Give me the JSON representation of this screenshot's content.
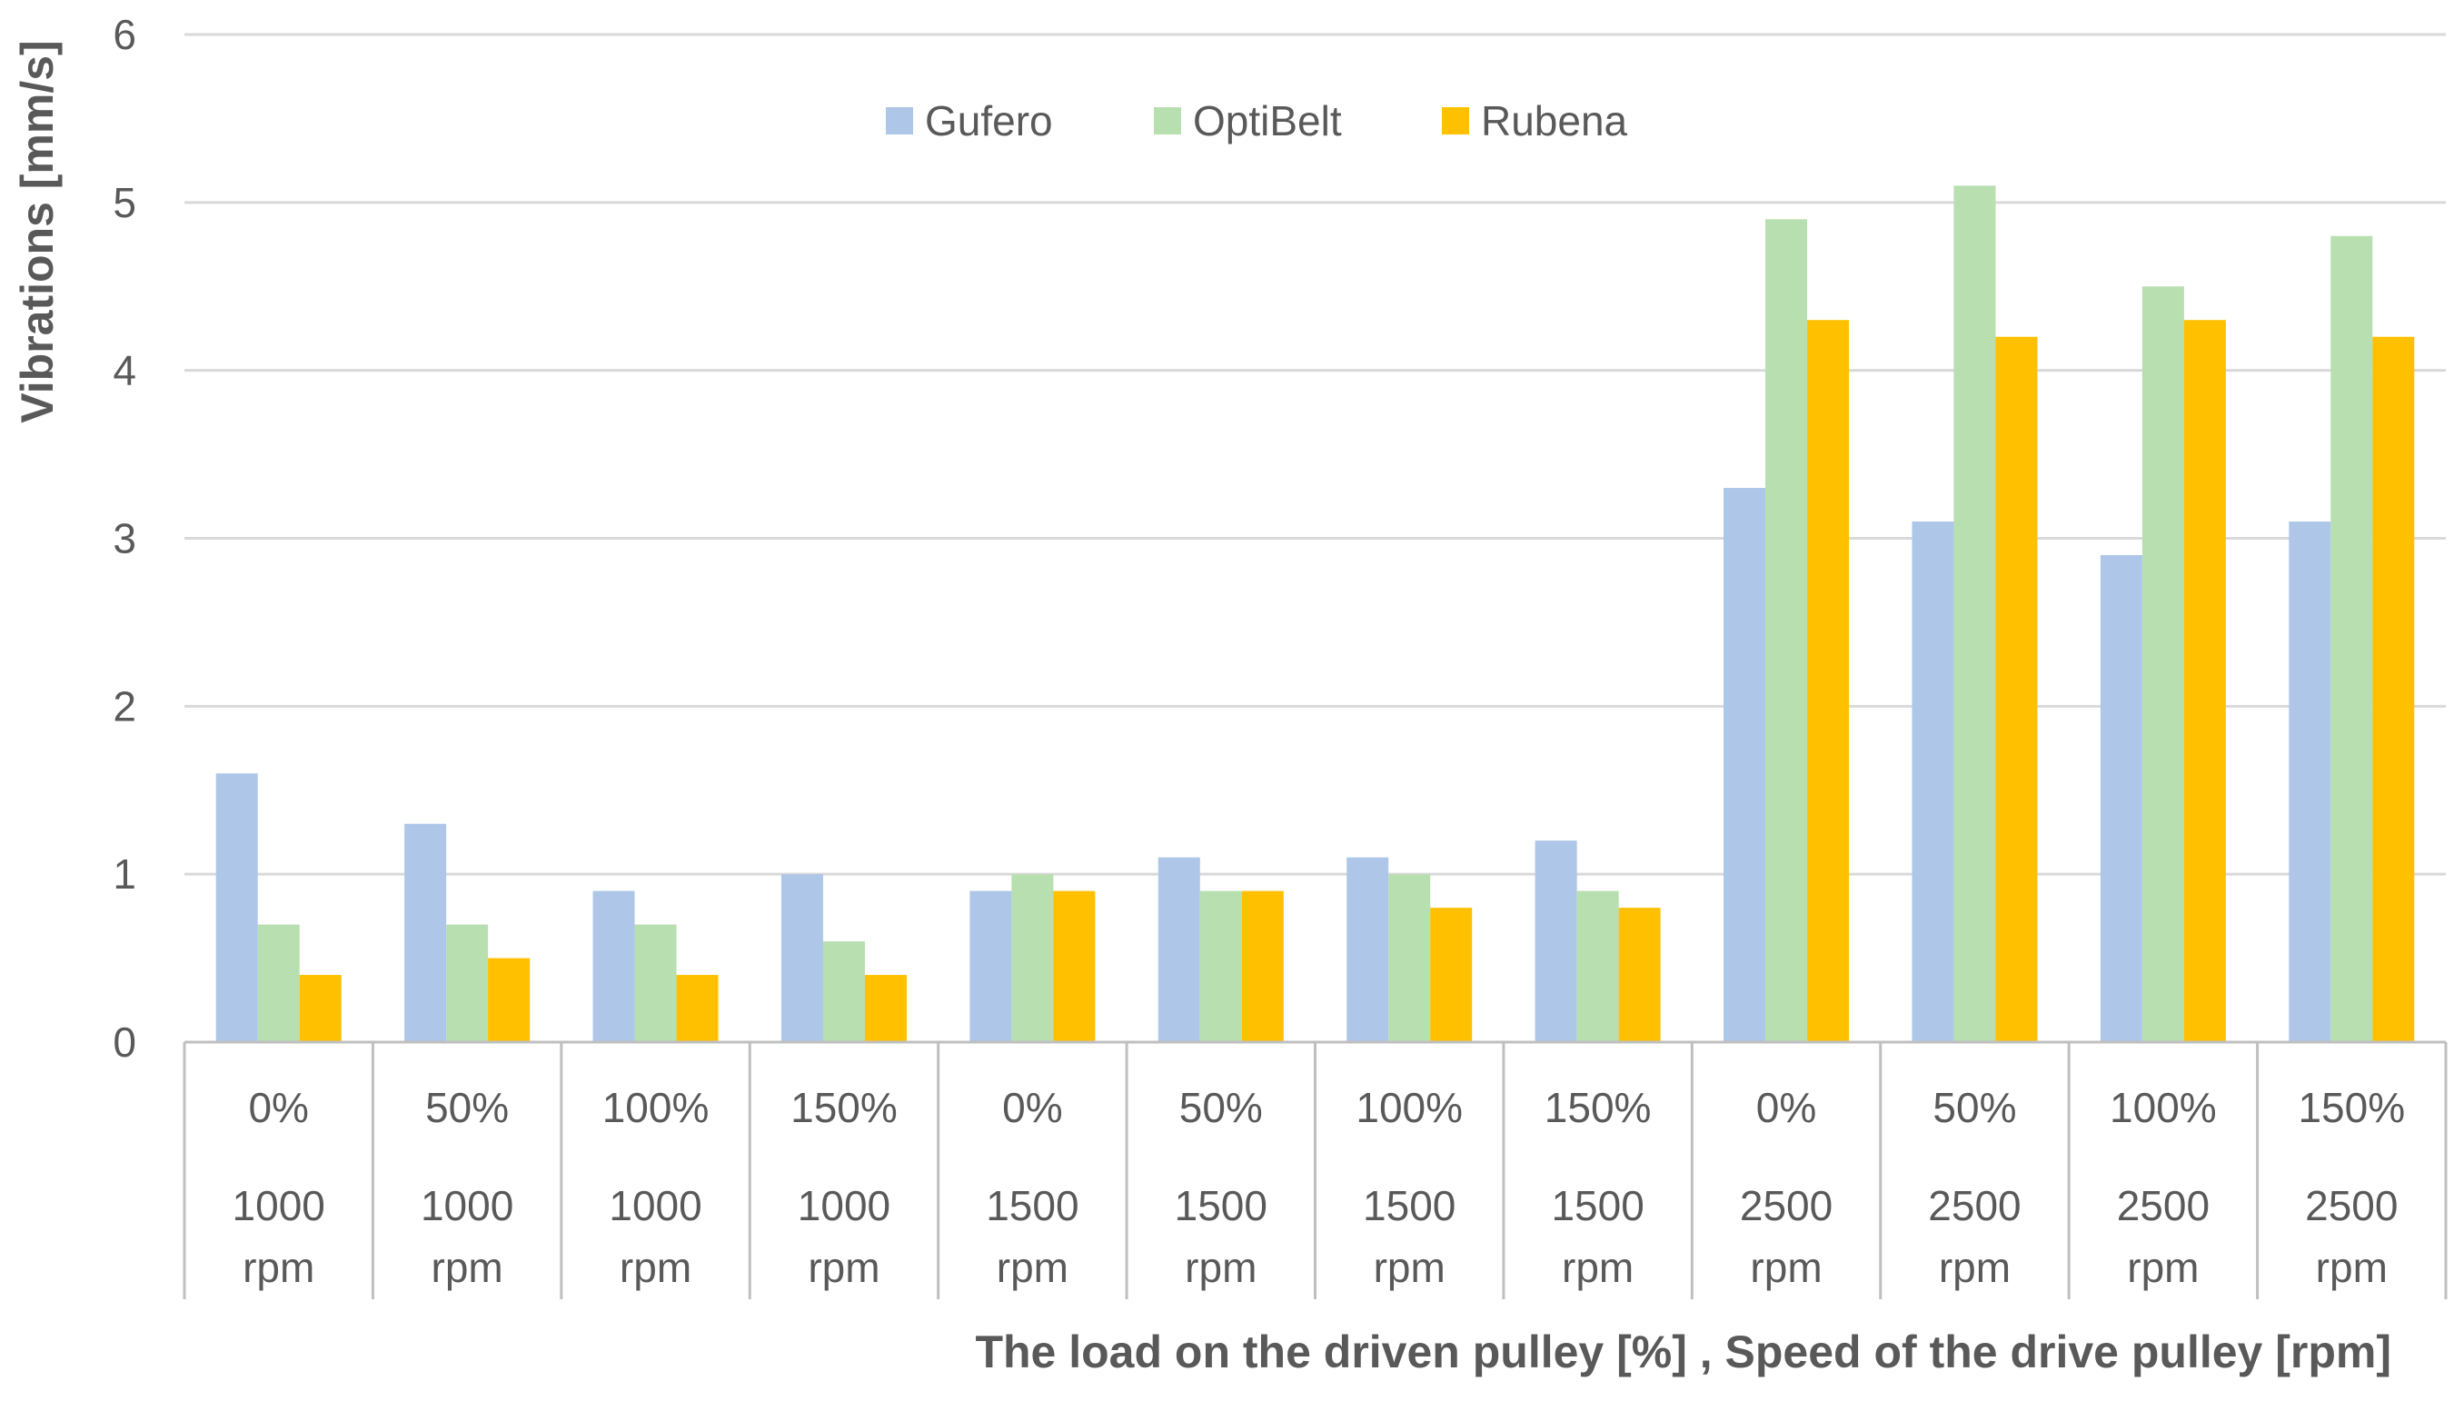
{
  "chart_data": {
    "type": "bar",
    "title": "",
    "xlabel": "The load on the driven pulley [%] , Speed of the drive pulley [rpm]",
    "ylabel": "Vibrations [mm/s]",
    "ylim": [
      0,
      6
    ],
    "yticks": [
      0,
      1,
      2,
      3,
      4,
      5,
      6
    ],
    "grid": true,
    "legend_position": "top-center",
    "categories": [
      {
        "load": "0%",
        "speed": "1000",
        "unit": "rpm"
      },
      {
        "load": "50%",
        "speed": "1000",
        "unit": "rpm"
      },
      {
        "load": "100%",
        "speed": "1000",
        "unit": "rpm"
      },
      {
        "load": "150%",
        "speed": "1000",
        "unit": "rpm"
      },
      {
        "load": "0%",
        "speed": "1500",
        "unit": "rpm"
      },
      {
        "load": "50%",
        "speed": "1500",
        "unit": "rpm"
      },
      {
        "load": "100%",
        "speed": "1500",
        "unit": "rpm"
      },
      {
        "load": "150%",
        "speed": "1500",
        "unit": "rpm"
      },
      {
        "load": "0%",
        "speed": "2500",
        "unit": "rpm"
      },
      {
        "load": "50%",
        "speed": "2500",
        "unit": "rpm"
      },
      {
        "load": "100%",
        "speed": "2500",
        "unit": "rpm"
      },
      {
        "load": "150%",
        "speed": "2500",
        "unit": "rpm"
      }
    ],
    "series": [
      {
        "name": "Gufero",
        "color": "#aec7e8",
        "values": [
          1.6,
          1.3,
          0.9,
          1.0,
          0.9,
          1.1,
          1.1,
          1.2,
          3.3,
          3.1,
          2.9,
          3.1
        ]
      },
      {
        "name": "OptiBelt",
        "color": "#b8dfb0",
        "values": [
          0.7,
          0.7,
          0.7,
          0.6,
          1.0,
          0.9,
          1.0,
          0.9,
          4.9,
          5.1,
          4.5,
          4.8
        ]
      },
      {
        "name": "Rubena",
        "color": "#ffc000",
        "values": [
          0.4,
          0.5,
          0.4,
          0.4,
          0.9,
          0.9,
          0.8,
          0.8,
          4.3,
          4.2,
          4.3,
          4.2
        ]
      }
    ]
  },
  "colors": {
    "gridline": "#d9d9d9",
    "axis_line": "#bfbfbf",
    "text": "#595959"
  }
}
